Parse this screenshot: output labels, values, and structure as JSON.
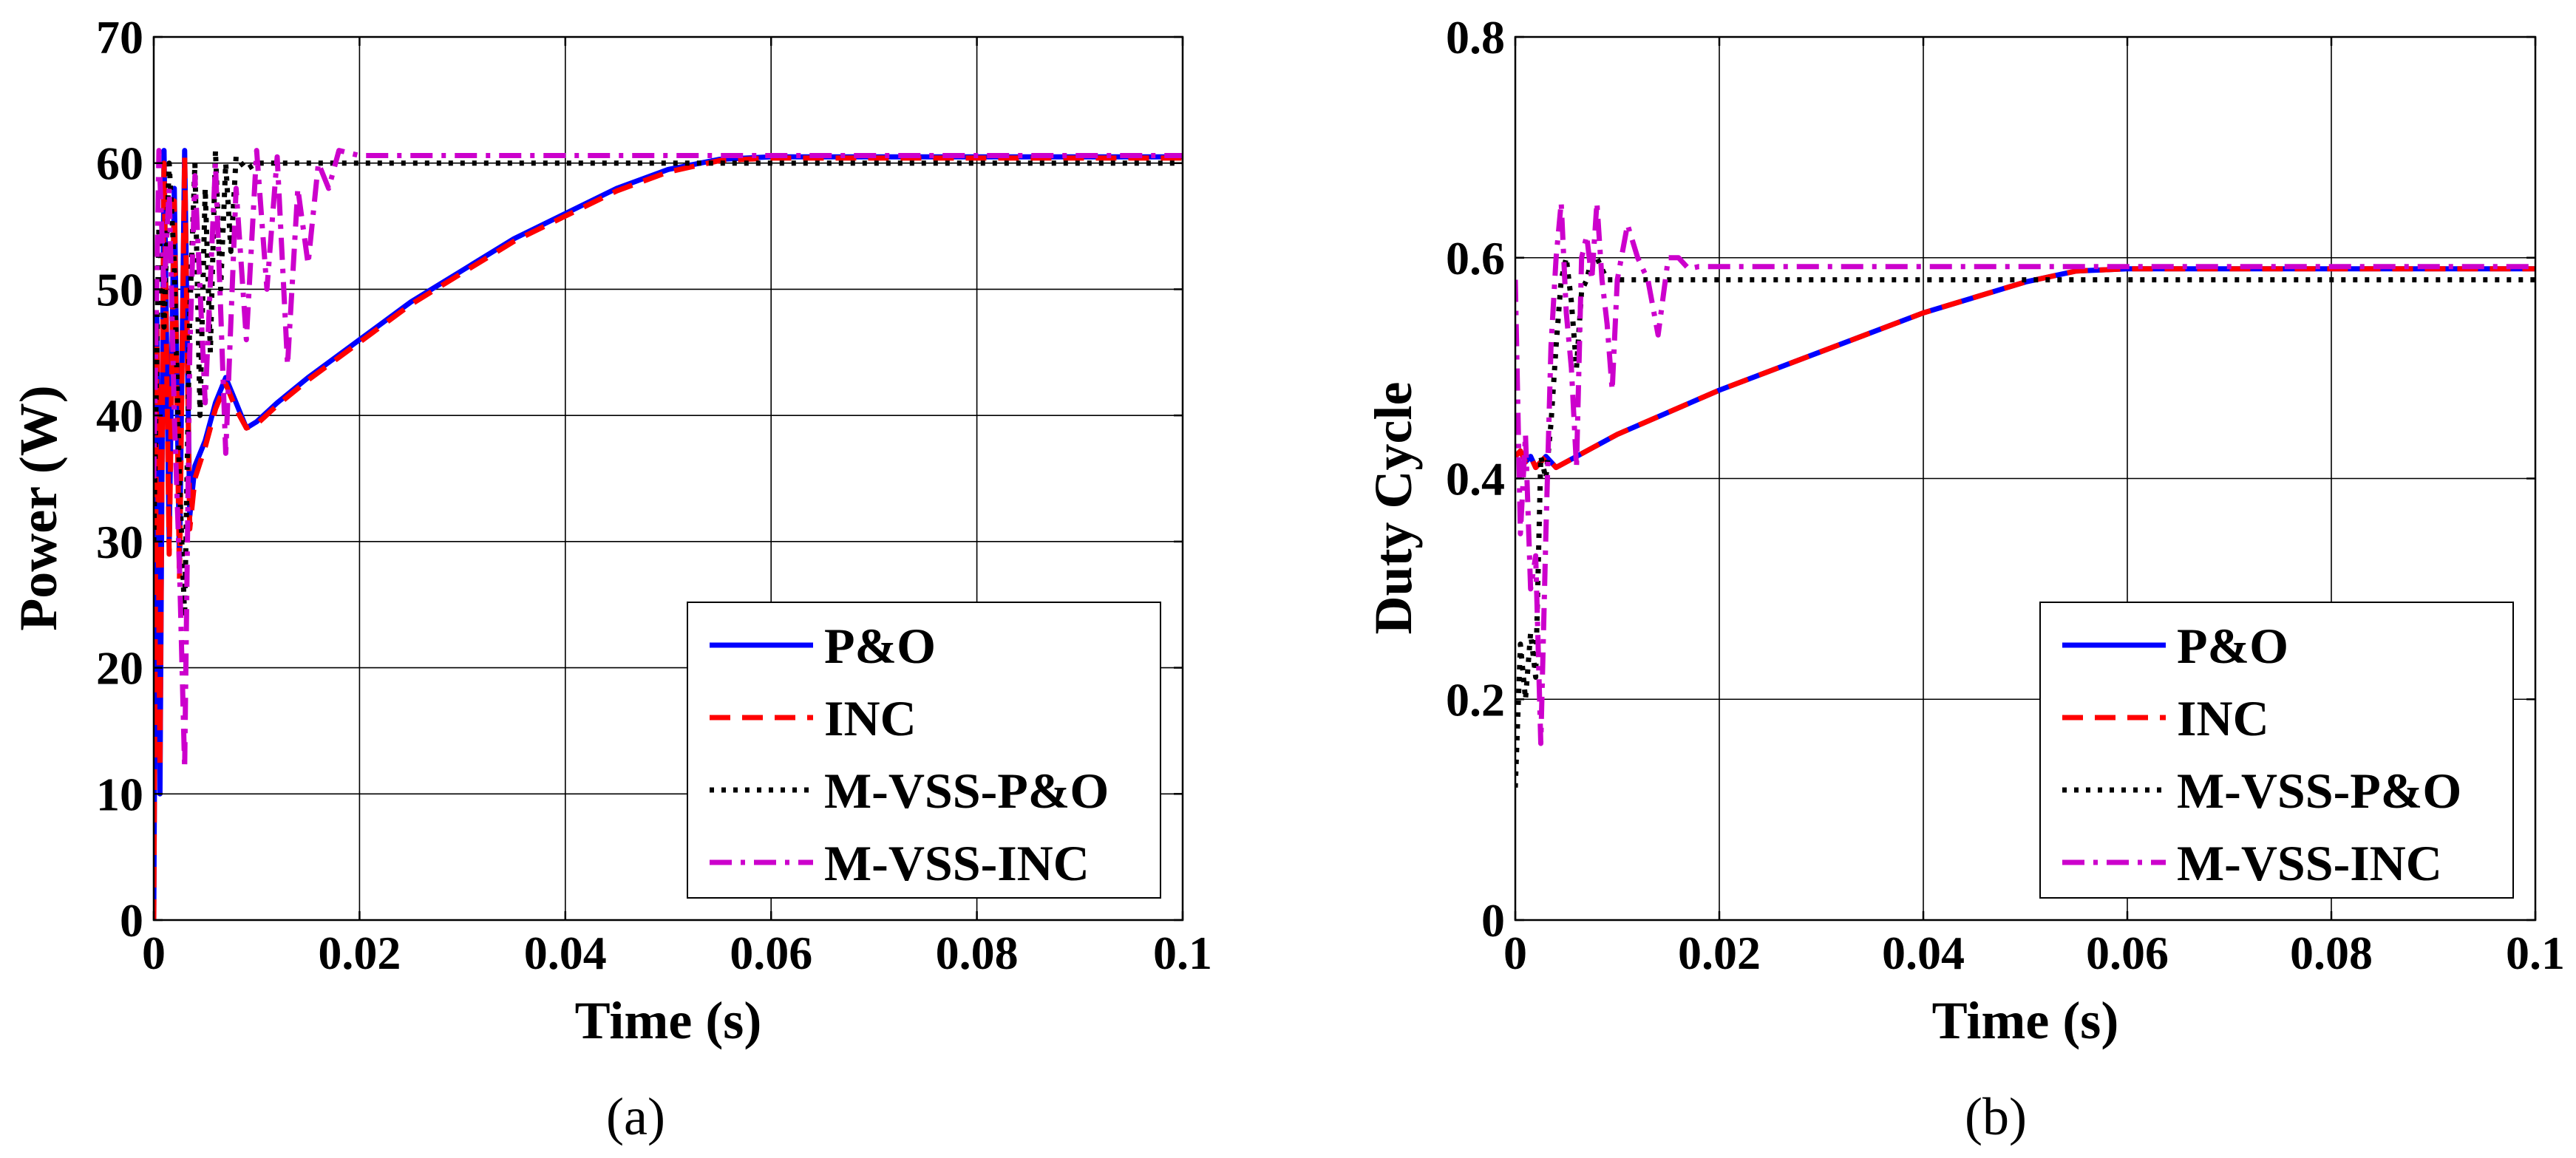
{
  "chart_data": [
    {
      "type": "line",
      "panel_label": "(a)",
      "xlabel": "Time (s)",
      "ylabel": "Power (W)",
      "xlim": [
        0,
        0.1
      ],
      "ylim": [
        0,
        70
      ],
      "xticks": [
        0,
        0.02,
        0.04,
        0.06,
        0.08,
        0.1
      ],
      "xtick_labels": [
        "0",
        "0.02",
        "0.04",
        "0.06",
        "0.08",
        "0.1"
      ],
      "yticks": [
        0,
        10,
        20,
        30,
        40,
        50,
        60,
        70
      ],
      "ytick_labels": [
        "0",
        "10",
        "20",
        "30",
        "40",
        "50",
        "60",
        "70"
      ],
      "grid": true,
      "legend_position": "bottom-right",
      "series": [
        {
          "name": "P&O",
          "color": "#0000ff",
          "style": "solid",
          "x": [
            0,
            0.0003,
            0.0006,
            0.001,
            0.0015,
            0.002,
            0.0025,
            0.003,
            0.0035,
            0.004,
            0.005,
            0.006,
            0.007,
            0.008,
            0.009,
            0.01,
            0.012,
            0.015,
            0.02,
            0.025,
            0.03,
            0.035,
            0.04,
            0.045,
            0.05,
            0.055,
            0.06,
            0.08,
            0.1
          ],
          "y": [
            0,
            48,
            10,
            61,
            30,
            58,
            28,
            61,
            32,
            36,
            38,
            41,
            43,
            41,
            39,
            39.5,
            41,
            43,
            46,
            49,
            51.5,
            54,
            56,
            58,
            59.5,
            60.3,
            60.5,
            60.5,
            60.5
          ]
        },
        {
          "name": "INC",
          "color": "#ff0000",
          "style": "dashed",
          "x": [
            0,
            0.0003,
            0.0006,
            0.001,
            0.0015,
            0.002,
            0.0025,
            0.003,
            0.0035,
            0.004,
            0.005,
            0.006,
            0.007,
            0.008,
            0.009,
            0.01,
            0.012,
            0.015,
            0.02,
            0.025,
            0.03,
            0.035,
            0.04,
            0.045,
            0.05,
            0.055,
            0.06,
            0.08,
            0.1
          ],
          "y": [
            0,
            47,
            12,
            60,
            29,
            57,
            27,
            60.5,
            31,
            35,
            37.5,
            40.5,
            42.5,
            40.5,
            39,
            39.3,
            40.8,
            42.8,
            45.8,
            48.8,
            51.3,
            53.8,
            55.8,
            57.8,
            59.3,
            60.2,
            60.4,
            60.4,
            60.4
          ]
        },
        {
          "name": "M-VSS-P&O",
          "color": "#000000",
          "style": "dotted",
          "x": [
            0,
            0.0005,
            0.001,
            0.0015,
            0.002,
            0.0025,
            0.003,
            0.0035,
            0.004,
            0.0045,
            0.005,
            0.0055,
            0.006,
            0.0065,
            0.007,
            0.0075,
            0.008,
            0.009,
            0.01,
            0.02,
            0.05,
            0.1
          ],
          "y": [
            30,
            55,
            47,
            60,
            52,
            35,
            24,
            48,
            60,
            40,
            58,
            45,
            61,
            50,
            60,
            53,
            60.5,
            59.5,
            60,
            60,
            60,
            60
          ]
        },
        {
          "name": "M-VSS-INC",
          "color": "#cc00cc",
          "style": "dashdot",
          "x": [
            0,
            0.0005,
            0.001,
            0.0015,
            0.002,
            0.0025,
            0.003,
            0.0035,
            0.004,
            0.005,
            0.006,
            0.007,
            0.008,
            0.009,
            0.01,
            0.011,
            0.012,
            0.013,
            0.014,
            0.015,
            0.016,
            0.017,
            0.018,
            0.02,
            0.05,
            0.1
          ],
          "y": [
            35,
            61,
            50,
            58,
            40,
            28,
            12,
            45,
            59,
            41,
            60,
            37,
            58,
            46,
            61,
            50,
            60.5,
            44,
            58,
            52,
            60,
            58,
            61,
            60.6,
            60.6,
            60.6
          ]
        }
      ]
    },
    {
      "type": "line",
      "panel_label": "(b)",
      "xlabel": "Time (s)",
      "ylabel": "Duty Cycle",
      "xlim": [
        0,
        0.1
      ],
      "ylim": [
        0,
        0.8
      ],
      "xticks": [
        0,
        0.02,
        0.04,
        0.06,
        0.08,
        0.1
      ],
      "xtick_labels": [
        "0",
        "0.02",
        "0.04",
        "0.06",
        "0.08",
        "0.1"
      ],
      "yticks": [
        0,
        0.2,
        0.4,
        0.6,
        0.8
      ],
      "ytick_labels": [
        "0",
        "0.2",
        "0.4",
        "0.6",
        "0.8"
      ],
      "grid": true,
      "legend_position": "bottom-right",
      "series": [
        {
          "name": "P&O",
          "color": "#0000ff",
          "style": "solid",
          "x": [
            0,
            0.0005,
            0.001,
            0.0015,
            0.002,
            0.003,
            0.004,
            0.01,
            0.02,
            0.03,
            0.04,
            0.05,
            0.055,
            0.06,
            0.08,
            0.1
          ],
          "y": [
            0.42,
            0.425,
            0.415,
            0.42,
            0.41,
            0.42,
            0.41,
            0.44,
            0.48,
            0.515,
            0.55,
            0.578,
            0.588,
            0.59,
            0.59,
            0.59
          ]
        },
        {
          "name": "INC",
          "color": "#ff0000",
          "style": "dashed",
          "x": [
            0,
            0.0005,
            0.001,
            0.0015,
            0.002,
            0.003,
            0.004,
            0.01,
            0.02,
            0.03,
            0.04,
            0.05,
            0.055,
            0.06,
            0.08,
            0.1
          ],
          "y": [
            0.42,
            0.425,
            0.415,
            0.42,
            0.41,
            0.42,
            0.41,
            0.44,
            0.48,
            0.515,
            0.55,
            0.578,
            0.588,
            0.59,
            0.59,
            0.59
          ]
        },
        {
          "name": "M-VSS-P&O",
          "color": "#000000",
          "style": "dotted",
          "x": [
            0,
            0.0005,
            0.001,
            0.0015,
            0.002,
            0.0025,
            0.003,
            0.0035,
            0.004,
            0.0045,
            0.005,
            0.0055,
            0.006,
            0.0065,
            0.007,
            0.0075,
            0.008,
            0.009,
            0.01,
            0.02,
            0.05,
            0.1
          ],
          "y": [
            0.12,
            0.25,
            0.2,
            0.26,
            0.22,
            0.42,
            0.4,
            0.45,
            0.52,
            0.58,
            0.6,
            0.56,
            0.5,
            0.57,
            0.58,
            0.6,
            0.6,
            0.58,
            0.58,
            0.58,
            0.58,
            0.58
          ]
        },
        {
          "name": "M-VSS-INC",
          "color": "#cc00cc",
          "style": "dashdot",
          "x": [
            0,
            0.0005,
            0.001,
            0.0015,
            0.002,
            0.0025,
            0.003,
            0.0035,
            0.004,
            0.0045,
            0.005,
            0.0055,
            0.006,
            0.0065,
            0.007,
            0.0075,
            0.008,
            0.0085,
            0.009,
            0.0095,
            0.01,
            0.011,
            0.012,
            0.013,
            0.014,
            0.015,
            0.016,
            0.017,
            0.018,
            0.02,
            0.05,
            0.1
          ],
          "y": [
            0.58,
            0.35,
            0.44,
            0.3,
            0.33,
            0.16,
            0.35,
            0.52,
            0.6,
            0.65,
            0.55,
            0.5,
            0.41,
            0.6,
            0.62,
            0.58,
            0.65,
            0.58,
            0.54,
            0.48,
            0.58,
            0.63,
            0.6,
            0.58,
            0.53,
            0.6,
            0.6,
            0.59,
            0.592,
            0.592,
            0.592,
            0.592
          ]
        }
      ]
    }
  ]
}
